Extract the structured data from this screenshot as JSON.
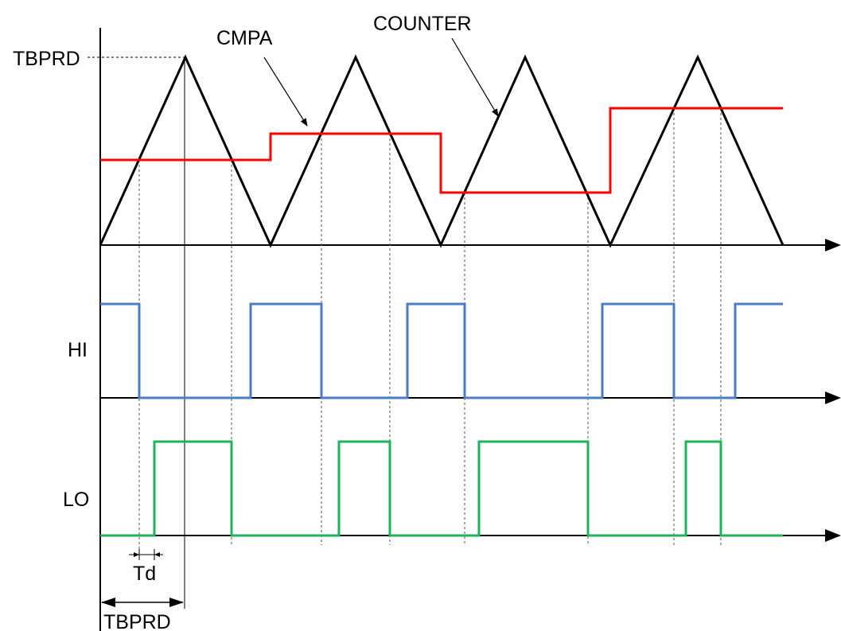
{
  "labels": {
    "tbprd_top": "TBPRD",
    "cmpa": "CMPA",
    "counter": "COUNTER",
    "hi": "HI",
    "lo": "LO",
    "td": "Td",
    "tbprd_bottom": "TBPRD"
  },
  "colors": {
    "counter": "#000000",
    "cmpa": "#ff0000",
    "hi": "#4a7cc9",
    "lo": "#1db45a"
  }
}
